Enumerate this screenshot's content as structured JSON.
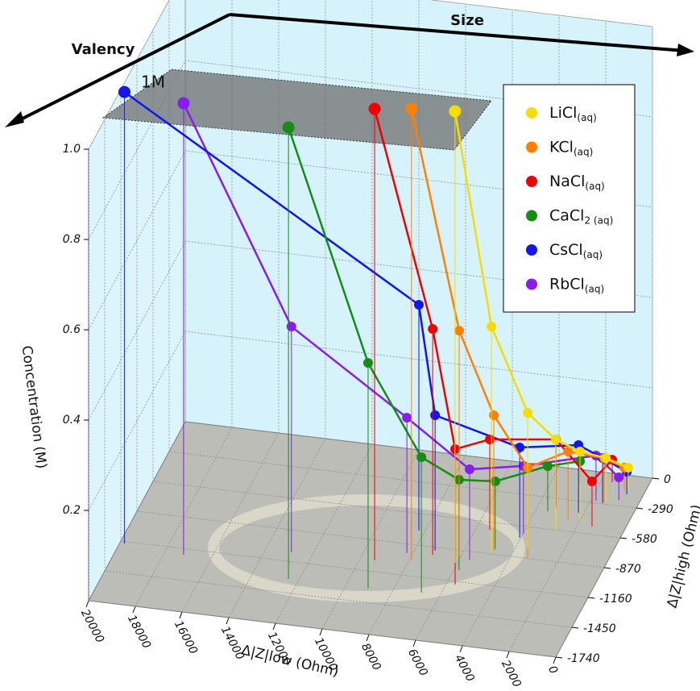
{
  "chart_data": {
    "type": "line3d",
    "annotations": [
      "Valency",
      "Size",
      "1M"
    ],
    "xlabel": "Δ|Z|low (Ohm)",
    "ylabel": "Δ|Z|high (Ohm)",
    "zlabel": "Concentration (M)",
    "xlim": [
      0,
      20000
    ],
    "ylim": [
      -1740,
      0
    ],
    "zlim": [
      0,
      1
    ],
    "xticks": [
      0,
      2000,
      4000,
      6000,
      8000,
      10000,
      12000,
      14000,
      16000,
      18000,
      20000
    ],
    "yticks": [
      0,
      -290,
      -580,
      -870,
      -1160,
      -1450,
      -1740
    ],
    "zticks": [
      0.2,
      0.4,
      0.6,
      0.8,
      {
        "value": 1,
        "label": "1.0"
      }
    ],
    "grid": true,
    "legend": "upper right",
    "series": [
      {
        "name": "LiCl",
        "subscript": "(aq)",
        "color": "#f7dc00",
        "x": [
          6100,
          4860,
          3490,
          2770,
          2020,
          1330,
          710
        ],
        "y": [
          -990,
          -854,
          -778,
          -578,
          -455,
          -280,
          -137
        ],
        "z": [
          1,
          0.5,
          0.3,
          0.2,
          0.15,
          0.1,
          0.05
        ]
      },
      {
        "name": "KCl",
        "subscript": "(aq)",
        "color": "#ff8000",
        "x": [
          7900,
          6070,
          4800,
          3280,
          2500,
          1400,
          870
        ],
        "y": [
          -1016,
          -927,
          -837,
          -866,
          -468,
          -282,
          -141
        ],
        "z": [
          1,
          0.5,
          0.3,
          0.2,
          0.15,
          0.1,
          0.05
        ]
      },
      {
        "name": "NaCl",
        "subscript": "(aq)",
        "color": "#f00000",
        "x": [
          9380,
          7170,
          5620,
          5420,
          3250,
          1380,
          1530
        ],
        "y": [
          -1057,
          -941,
          -1189,
          -650,
          -371,
          -508,
          -82
        ],
        "z": [
          1,
          0.5,
          0.3,
          0.2,
          0.15,
          0.1,
          0.05
        ]
      },
      {
        "name": "CaCl",
        "subscript": "2 (aq)",
        "color": "#168c16",
        "x": [
          12440,
          9030,
          6800,
          5780,
          4780,
          3490,
          2790
        ],
        "y": [
          -1321,
          -1322,
          -1300,
          -1052,
          -821,
          -418,
          -132
        ],
        "z": [
          1,
          0.5,
          0.3,
          0.2,
          0.15,
          0.1,
          0.05
        ]
      },
      {
        "name": "CsCl",
        "subscript": "(aq)",
        "color": "#1414f0",
        "x": [
          19800,
          8250,
          7160,
          4040,
          2220,
          1460,
          680
        ],
        "y": [
          -1179,
          -736,
          -902,
          -691,
          -398,
          -283,
          -176
        ],
        "z": [
          1,
          0.5,
          0.3,
          0.2,
          0.15,
          0.1,
          0.05
        ]
      },
      {
        "name": "RbCl",
        "subscript": "(aq)",
        "color": "#8a1cee",
        "x": [
          17180,
          12900,
          8240,
          5580,
          3980,
          1780,
          880
        ],
        "y": [
          -1216,
          -1075,
          -955,
          -945,
          -649,
          -268,
          -236
        ],
        "z": [
          1,
          0.5,
          0.3,
          0.2,
          0.15,
          0.1,
          0.05
        ]
      }
    ]
  }
}
